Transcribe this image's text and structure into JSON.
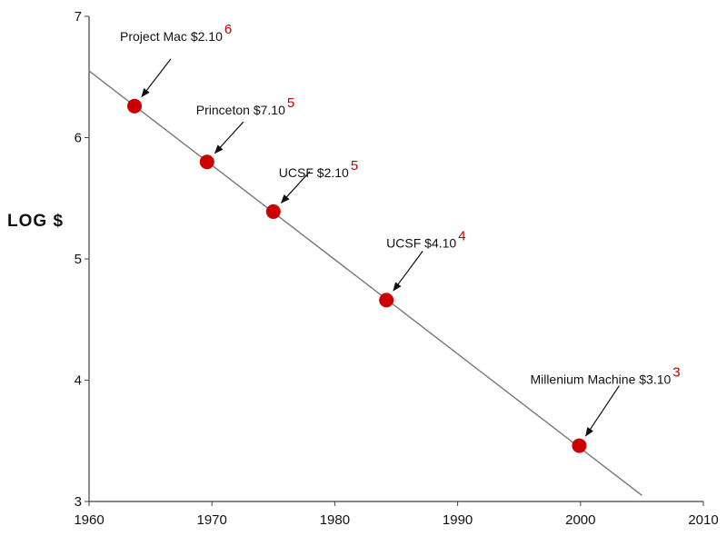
{
  "chart_data": {
    "type": "scatter",
    "title": "",
    "xlabel": "",
    "ylabel": "LOG $",
    "xlim": [
      1960,
      2010
    ],
    "ylim": [
      3,
      7
    ],
    "x_ticks": [
      "1960",
      "1970",
      "1980",
      "1990",
      "2000",
      "2010"
    ],
    "y_ticks": [
      "3",
      "4",
      "5",
      "6",
      "7"
    ],
    "grid": false,
    "point_color": "#cc0000",
    "trend_line": {
      "x": [
        1960,
        2005
      ],
      "y": [
        6.55,
        3.05
      ]
    },
    "points": [
      {
        "x": 1963.7,
        "y": 6.26,
        "label": "Project Mac $2.10",
        "exp": "6"
      },
      {
        "x": 1969.6,
        "y": 5.8,
        "label": "Princeton $7.10",
        "exp": "5"
      },
      {
        "x": 1975.0,
        "y": 5.39,
        "label": "UCSF $2.10",
        "exp": "5"
      },
      {
        "x": 1984.2,
        "y": 4.66,
        "label": "UCSF $4.10",
        "exp": "4"
      },
      {
        "x": 1999.9,
        "y": 3.46,
        "label": "Millenium Machine $3.10",
        "exp": "3"
      }
    ]
  }
}
